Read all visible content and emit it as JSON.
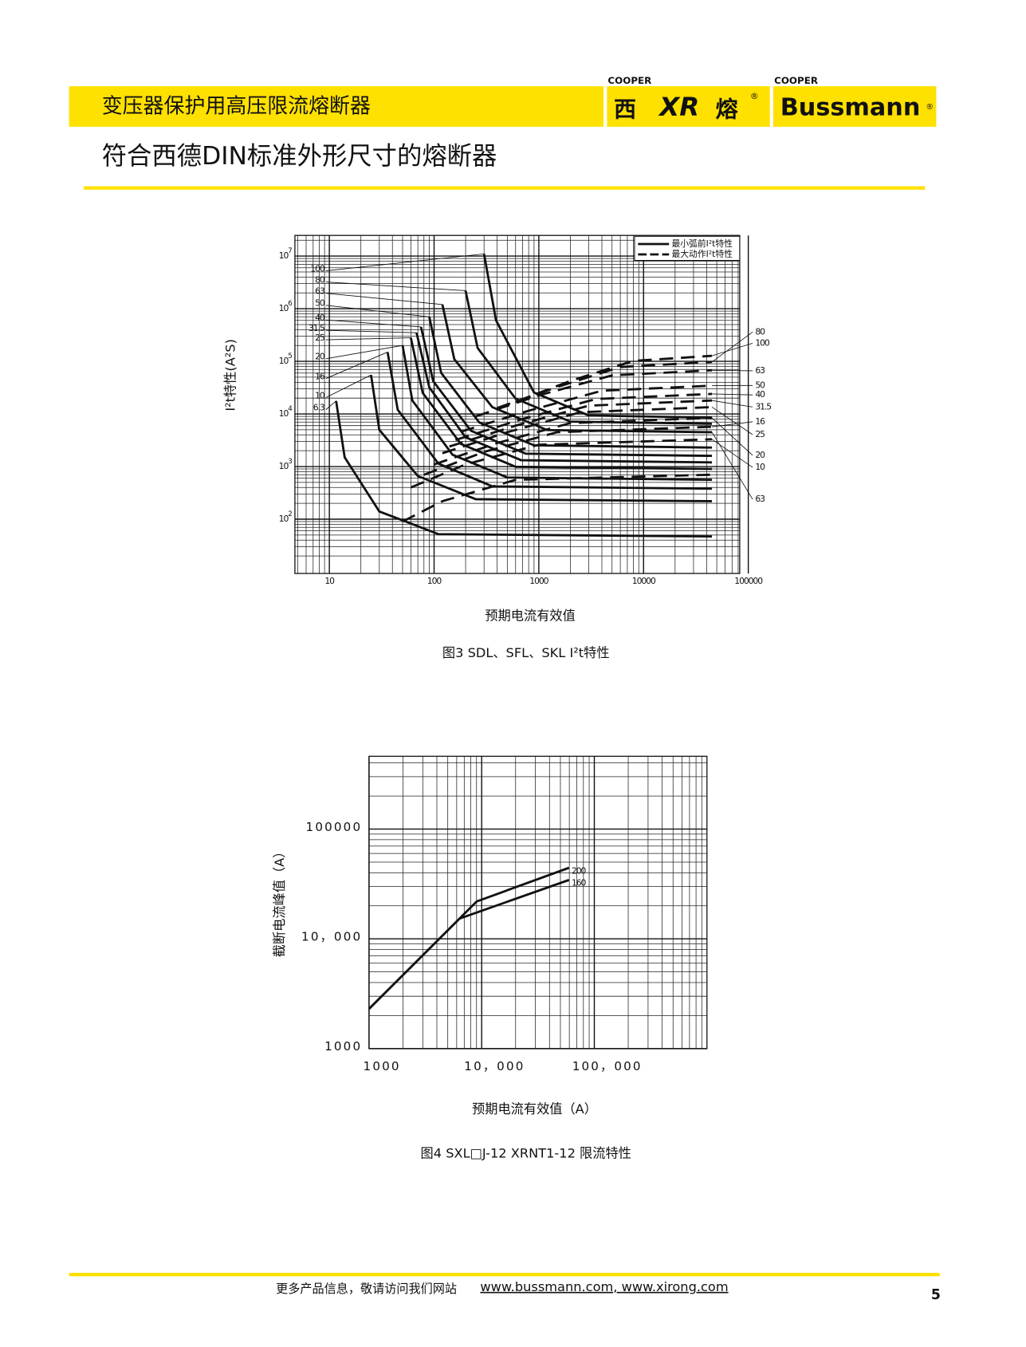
{
  "header": {
    "title": "变压器保护用高压限流熔断器",
    "logos": {
      "cooper1": "COOPER",
      "xr_left": "西",
      "xr_mid": "XR",
      "xr_right": "熔",
      "reg1": "®",
      "cooper2": "COOPER",
      "bussmann": "Bussmann",
      "reg2": "®"
    }
  },
  "page_title": "符合西德DIN标准外形尺寸的熔断器",
  "chart_data": [
    {
      "type": "line",
      "xscale": "log",
      "yscale": "log",
      "grid": true,
      "minor_grid": true,
      "ylabel": "I²t特性(A²S)",
      "xlabel": "预期电流有效值",
      "caption": "图3 SDL、SFL、SKL I²t特性",
      "xlim": [
        4.69,
        82800
      ],
      "ylim": [
        9.3,
        24700000
      ],
      "xticks": [
        10,
        100,
        1000,
        10000,
        100000
      ],
      "yticks": [
        {
          "value": 100,
          "label": "10",
          "sup": "2"
        },
        {
          "value": 1000,
          "label": "10",
          "sup": "3"
        },
        {
          "value": 10000,
          "label": "10",
          "sup": "4"
        },
        {
          "value": 100000,
          "label": "10",
          "sup": "5"
        },
        {
          "value": 1000000,
          "label": "10",
          "sup": "6"
        },
        {
          "value": 10000000,
          "label": "10",
          "sup": "7"
        }
      ],
      "legend": [
        {
          "label": "最小弧前I²t特性",
          "style": "solid"
        },
        {
          "label": "最大动作I²t特性",
          "style": "dashed"
        }
      ],
      "series": [
        {
          "name": "6.3",
          "style": "solid",
          "color": "#111",
          "x": [
            11.6,
            14,
            30,
            110,
            45000
          ],
          "values": [
            17700,
            1500,
            140,
            52,
            47
          ]
        },
        {
          "name": "10",
          "style": "solid",
          "color": "#111",
          "x": [
            25,
            30,
            70,
            250,
            45000
          ],
          "values": [
            55000,
            5000,
            660,
            240,
            220
          ]
        },
        {
          "name": "16",
          "style": "solid",
          "color": "#111",
          "x": [
            36,
            45,
            110,
            360,
            45000
          ],
          "values": [
            150000,
            12000,
            1140,
            420,
            380
          ]
        },
        {
          "name": "20",
          "style": "solid",
          "color": "#111",
          "x": [
            50,
            62,
            150,
            500,
            45000
          ],
          "values": [
            200000,
            18000,
            1680,
            620,
            560
          ]
        },
        {
          "name": "25",
          "style": "solid",
          "color": "#111",
          "x": [
            60,
            78,
            180,
            600,
            45000
          ],
          "values": [
            280000,
            25000,
            2700,
            990,
            900
          ]
        },
        {
          "name": "31.5",
          "style": "solid",
          "color": "#111",
          "x": [
            68,
            90,
            200,
            680,
            45000
          ],
          "values": [
            350000,
            32000,
            3600,
            1320,
            1200
          ]
        },
        {
          "name": "40",
          "style": "solid",
          "color": "#111",
          "x": [
            75,
            98,
            225,
            750,
            45000
          ],
          "values": [
            450000,
            42000,
            4800,
            1760,
            1600
          ]
        },
        {
          "name": "50",
          "style": "solid",
          "color": "#111",
          "x": [
            90,
            117,
            270,
            900,
            45000
          ],
          "values": [
            700000,
            60000,
            6900,
            2530,
            2300
          ]
        },
        {
          "name": "63",
          "style": "solid",
          "color": "#111",
          "x": [
            120,
            156,
            360,
            1200,
            45000
          ],
          "values": [
            1200000,
            110000,
            13500,
            4950,
            4500
          ]
        },
        {
          "name": "80",
          "style": "solid",
          "color": "#111",
          "x": [
            200,
            260,
            600,
            2000,
            45000
          ],
          "values": [
            2200000,
            180000,
            19500,
            7150,
            6500
          ]
        },
        {
          "name": "100",
          "style": "solid",
          "color": "#111",
          "x": [
            300,
            390,
            900,
            3000,
            45000
          ],
          "values": [
            11000000,
            600000,
            25500,
            9350,
            8500
          ]
        },
        {
          "name": "6.3",
          "style": "dashed",
          "color": "#111",
          "x": [
            50,
            120,
            600,
            45000
          ],
          "values": [
            90,
            220,
            560,
            700
          ]
        },
        {
          "name": "10",
          "style": "dashed",
          "color": "#111",
          "x": [
            60,
            200,
            1000,
            45000
          ],
          "values": [
            400,
            1100,
            2600,
            3300
          ]
        },
        {
          "name": "16",
          "style": "dashed",
          "color": "#111",
          "x": [
            80,
            300,
            1500,
            45000
          ],
          "values": [
            700,
            1900,
            4500,
            5700
          ]
        },
        {
          "name": "20",
          "style": "dashed",
          "color": "#111",
          "x": [
            100,
            400,
            2000,
            45000
          ],
          "values": [
            1100,
            2800,
            6700,
            8400
          ]
        },
        {
          "name": "25",
          "style": "dashed",
          "color": "#111",
          "x": [
            120,
            500,
            2500,
            45000
          ],
          "values": [
            1800,
            4500,
            10800,
            13500
          ]
        },
        {
          "name": "31.5",
          "style": "dashed",
          "color": "#111",
          "x": [
            140,
            600,
            3000,
            45000
          ],
          "values": [
            2400,
            6000,
            14400,
            18000
          ]
        },
        {
          "name": "40",
          "style": "dashed",
          "color": "#111",
          "x": [
            160,
            700,
            3500,
            45000
          ],
          "values": [
            3200,
            8000,
            19200,
            24000
          ]
        },
        {
          "name": "50",
          "style": "dashed",
          "color": "#111",
          "x": [
            180,
            800,
            4000,
            45000
          ],
          "values": [
            4600,
            11500,
            27600,
            34500
          ]
        },
        {
          "name": "63",
          "style": "dashed",
          "color": "#111",
          "x": [
            250,
            1000,
            5000,
            45000
          ],
          "values": [
            9000,
            22500,
            54000,
            67500
          ]
        },
        {
          "name": "80",
          "style": "dashed",
          "color": "#111",
          "x": [
            400,
            1500,
            6000,
            45000
          ],
          "values": [
            13000,
            32500,
            78000,
            97500
          ]
        },
        {
          "name": "100",
          "style": "dashed",
          "color": "#111",
          "x": [
            600,
            2000,
            8000,
            45000
          ],
          "values": [
            17000,
            42500,
            102000,
            127500
          ]
        }
      ]
    },
    {
      "type": "line",
      "xscale": "log",
      "yscale": "log",
      "grid": true,
      "minor_grid": true,
      "ylabel": "截断电流峰值（A）",
      "xlabel": "预期电流有效值（A）",
      "caption": "图4 SXL□J-12  XRNT1-12 限流特性",
      "xlim": [
        1000,
        1000000
      ],
      "ylim": [
        1000,
        460000
      ],
      "xticks": [
        1000,
        {
          "value": 10000,
          "label": "10，000"
        },
        {
          "value": 100000,
          "label": "100，000"
        }
      ],
      "yticks": [
        1000,
        {
          "value": 10000,
          "label": "10，000"
        },
        100000
      ],
      "series": [
        {
          "name": "200",
          "style": "solid",
          "color": "#111",
          "x": [
            1000,
            9040,
            59600
          ],
          "values": [
            2300,
            21900,
            44400
          ]
        },
        {
          "name": "160",
          "style": "solid",
          "color": "#111",
          "x": [
            1000,
            6360,
            59600
          ],
          "values": [
            2300,
            15300,
            34400
          ]
        }
      ]
    }
  ],
  "footer": {
    "text": "更多产品信息，敬请访问我们网站",
    "links": "www.bussmann.com, www.xirong.com",
    "page": "5"
  }
}
